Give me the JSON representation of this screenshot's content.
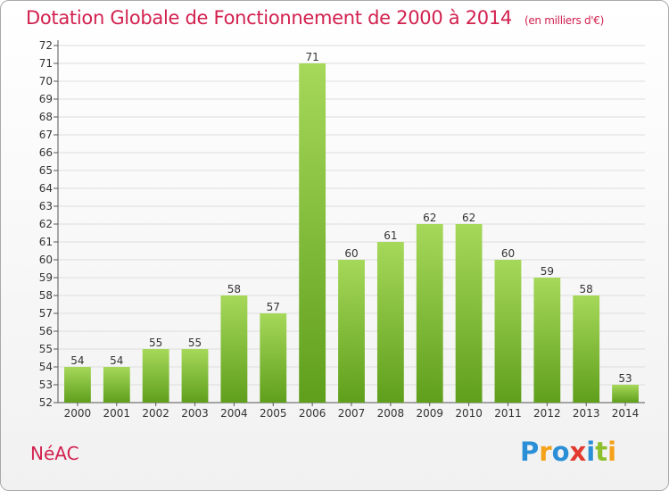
{
  "title": "Dotation Globale de Fonctionnement de 2000 à 2014",
  "title_unit": "(en milliers d'€)",
  "commune": "NéAC",
  "logo": {
    "letters": [
      "P",
      "r",
      "o",
      "x",
      "i",
      "t",
      "i"
    ],
    "colors": [
      "#2a8fd6",
      "#f3a21a",
      "#2a8fd6",
      "#e23a2f",
      "#2a8fd6",
      "#8dbf2c",
      "#f3a21a"
    ]
  },
  "colors": {
    "bar_top": "#a6d85a",
    "bar_bottom": "#5f9f1c",
    "grid": "#dddddd",
    "title": "#d2214f"
  },
  "chart_data": {
    "type": "bar",
    "title": "Dotation Globale de Fonctionnement de 2000 à 2014",
    "categories": [
      "2000",
      "2001",
      "2002",
      "2003",
      "2004",
      "2005",
      "2006",
      "2007",
      "2008",
      "2009",
      "2010",
      "2011",
      "2012",
      "2013",
      "2014"
    ],
    "values": [
      54,
      54,
      55,
      55,
      58,
      57,
      71,
      60,
      61,
      62,
      62,
      60,
      59,
      58,
      53
    ],
    "ylim": [
      52,
      72
    ],
    "yticks": [
      52,
      53,
      54,
      55,
      56,
      57,
      58,
      59,
      60,
      61,
      62,
      63,
      64,
      65,
      66,
      67,
      68,
      69,
      70,
      71,
      72
    ],
    "grid": true,
    "data_labels": true
  }
}
